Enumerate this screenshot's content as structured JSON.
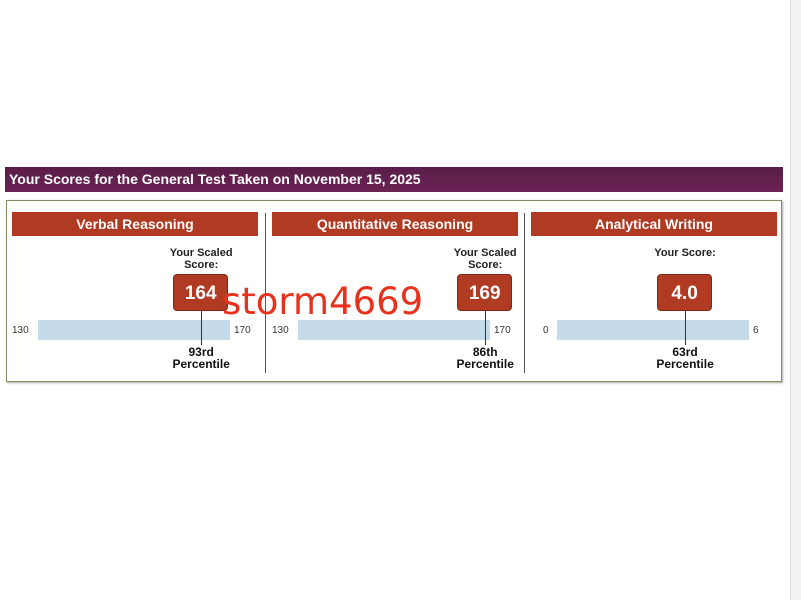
{
  "header": {
    "title": "Your Scores for the General Test Taken on November 15, 2025"
  },
  "sections": [
    {
      "title": "Verbal Reasoning",
      "score_label": "Your Scaled Score:",
      "score": "164",
      "min": "130",
      "max": "170",
      "percentile": "93rd",
      "percentile_label": "Percentile",
      "score_fraction": 0.85
    },
    {
      "title": "Quantitative Reasoning",
      "score_label": "Your Scaled Score:",
      "score": "169",
      "min": "130",
      "max": "170",
      "percentile": "86th",
      "percentile_label": "Percentile",
      "score_fraction": 0.975
    },
    {
      "title": "Analytical Writing",
      "score_label": "Your Score:",
      "score": "4.0",
      "min": "0",
      "max": "6",
      "percentile": "63rd",
      "percentile_label": "Percentile",
      "score_fraction": 0.667
    }
  ],
  "watermark": "storm4669",
  "colors": {
    "header": "#5c1f4a",
    "section": "#b03a22",
    "bar": "#c6dbea",
    "watermark": "#e8321e"
  }
}
